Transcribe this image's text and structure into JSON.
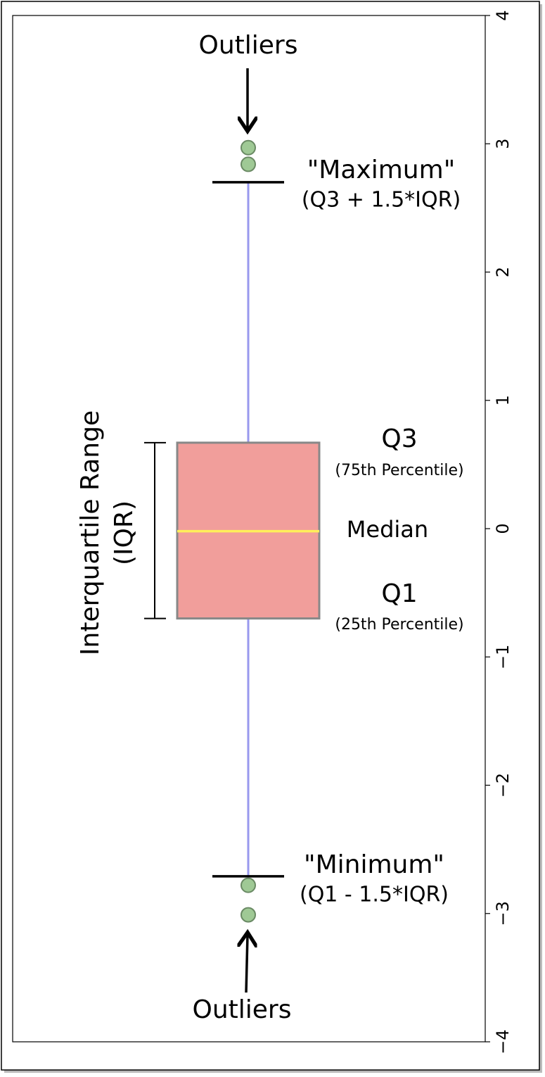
{
  "chart_data": {
    "type": "box",
    "ylim": [
      -4,
      4
    ],
    "yticks": [
      {
        "value": -4,
        "label": "−4"
      },
      {
        "value": -3,
        "label": "−3"
      },
      {
        "value": -2,
        "label": "−2"
      },
      {
        "value": -1,
        "label": "−1"
      },
      0,
      1,
      2,
      3,
      4
    ],
    "q1": -0.7,
    "median": -0.02,
    "q3": 0.67,
    "whisker_low": -2.71,
    "whisker_high": 2.7,
    "outliers": [
      2.97,
      2.84,
      -2.78,
      -3.01
    ],
    "box_color": "#f19e9b",
    "median_color": "#ffef5a",
    "whisker_color": "#9999ee",
    "outlier_color": "#9fc995",
    "annotations": [
      "Outliers",
      "\"Maximum\"",
      "(Q3 + 1.5*IQR)",
      "Q3",
      "(75th Percentile)",
      "Median",
      "Q1",
      "(25th Percentile)",
      "\"Minimum\"",
      "(Q1 - 1.5*IQR)",
      "Outliers",
      "Interquartile Range",
      "(IQR)"
    ]
  }
}
